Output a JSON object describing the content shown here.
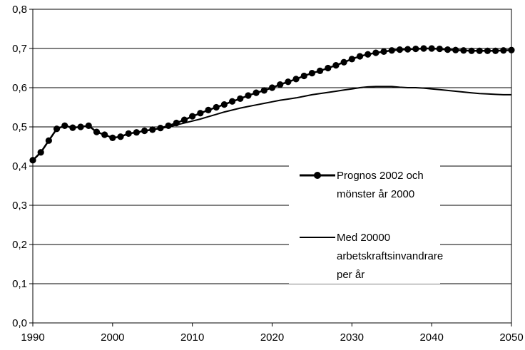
{
  "chart_data": {
    "type": "line",
    "title": "",
    "xlabel": "",
    "ylabel": "",
    "xlim": [
      1990,
      2050
    ],
    "ylim": [
      0.0,
      0.8
    ],
    "x_ticks": [
      "1990",
      "2000",
      "2010",
      "2020",
      "2030",
      "2040",
      "2050"
    ],
    "y_ticks": [
      "0,0",
      "0,1",
      "0,2",
      "0,3",
      "0,4",
      "0,5",
      "0,6",
      "0,7",
      "0,8"
    ],
    "grid": "horizontal",
    "legend_position": "right-center",
    "x": [
      1990,
      1991,
      1992,
      1993,
      1994,
      1995,
      1996,
      1997,
      1998,
      1999,
      2000,
      2001,
      2002,
      2003,
      2004,
      2005,
      2006,
      2007,
      2008,
      2009,
      2010,
      2011,
      2012,
      2013,
      2014,
      2015,
      2016,
      2017,
      2018,
      2019,
      2020,
      2021,
      2022,
      2023,
      2024,
      2025,
      2026,
      2027,
      2028,
      2029,
      2030,
      2031,
      2032,
      2033,
      2034,
      2035,
      2036,
      2037,
      2038,
      2039,
      2040,
      2041,
      2042,
      2043,
      2044,
      2045,
      2046,
      2047,
      2048,
      2049,
      2050
    ],
    "series": [
      {
        "name": "Prognos 2002 och mönster år 2000",
        "marker": "circle",
        "values": [
          0.415,
          0.435,
          0.465,
          0.495,
          0.503,
          0.498,
          0.5,
          0.503,
          0.487,
          0.48,
          0.472,
          0.475,
          0.483,
          0.486,
          0.49,
          0.493,
          0.497,
          0.503,
          0.51,
          0.518,
          0.527,
          0.535,
          0.543,
          0.55,
          0.557,
          0.565,
          0.572,
          0.58,
          0.587,
          0.593,
          0.6,
          0.608,
          0.615,
          0.622,
          0.63,
          0.637,
          0.643,
          0.65,
          0.657,
          0.665,
          0.673,
          0.68,
          0.685,
          0.689,
          0.692,
          0.695,
          0.697,
          0.698,
          0.699,
          0.7,
          0.7,
          0.699,
          0.697,
          0.696,
          0.695,
          0.694,
          0.694,
          0.694,
          0.694,
          0.695,
          0.696
        ]
      },
      {
        "name": "Med 20000 arbetskraftsinvandrare per år",
        "marker": "none",
        "values": [
          0.415,
          0.435,
          0.465,
          0.495,
          0.503,
          0.498,
          0.5,
          0.503,
          0.487,
          0.48,
          0.472,
          0.475,
          0.483,
          0.486,
          0.49,
          0.493,
          0.496,
          0.5,
          0.505,
          0.51,
          0.515,
          0.52,
          0.526,
          0.532,
          0.538,
          0.543,
          0.548,
          0.552,
          0.556,
          0.56,
          0.564,
          0.568,
          0.571,
          0.574,
          0.578,
          0.582,
          0.585,
          0.588,
          0.591,
          0.594,
          0.597,
          0.6,
          0.602,
          0.603,
          0.603,
          0.603,
          0.601,
          0.6,
          0.6,
          0.599,
          0.597,
          0.595,
          0.593,
          0.591,
          0.589,
          0.587,
          0.585,
          0.584,
          0.583,
          0.582,
          0.582
        ]
      }
    ],
    "legend": [
      {
        "lines": [
          "Prognos 2002 och",
          "mönster år 2000"
        ]
      },
      {
        "lines": [
          "Med 20000",
          "arbetskraftsinvandrare",
          "per år"
        ]
      }
    ],
    "colors": {
      "line": "#000000",
      "grid": "#000000",
      "legend_bg": "#ffffff"
    }
  }
}
